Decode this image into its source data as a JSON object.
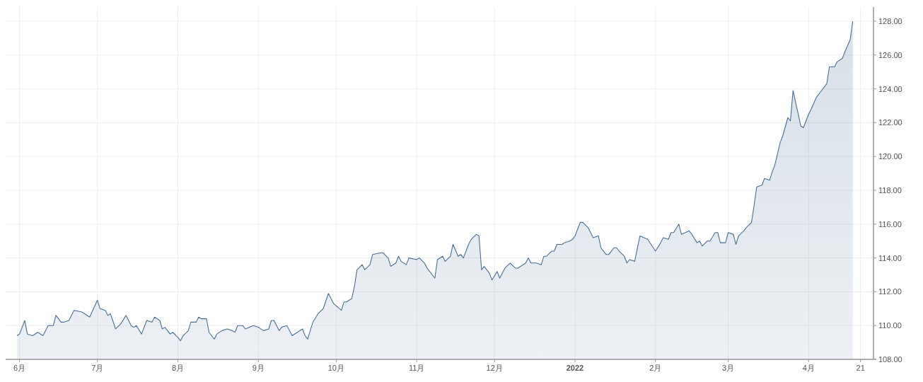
{
  "chart_data": {
    "type": "area",
    "x": [
      "2021-05-31",
      "2021-06-01",
      "2021-06-03",
      "2021-06-04",
      "2021-06-06",
      "2021-06-08",
      "2021-06-10",
      "2021-06-12",
      "2021-06-14",
      "2021-06-15",
      "2021-06-17",
      "2021-06-18",
      "2021-06-20",
      "2021-06-22",
      "2021-06-25",
      "2021-06-28",
      "2021-07-01",
      "2021-07-02",
      "2021-07-04",
      "2021-07-05",
      "2021-07-06",
      "2021-07-08",
      "2021-07-10",
      "2021-07-12",
      "2021-07-14",
      "2021-07-15",
      "2021-07-16",
      "2021-07-18",
      "2021-07-20",
      "2021-07-22",
      "2021-07-23",
      "2021-07-25",
      "2021-07-26",
      "2021-07-27",
      "2021-07-29",
      "2021-07-30",
      "2021-08-01",
      "2021-08-02",
      "2021-08-03",
      "2021-08-05",
      "2021-08-06",
      "2021-08-08",
      "2021-08-09",
      "2021-08-10",
      "2021-08-12",
      "2021-08-13",
      "2021-08-15",
      "2021-08-16",
      "2021-08-18",
      "2021-08-20",
      "2021-08-22",
      "2021-08-23",
      "2021-08-24",
      "2021-08-26",
      "2021-08-27",
      "2021-08-30",
      "2021-09-01",
      "2021-09-03",
      "2021-09-05",
      "2021-09-06",
      "2021-09-07",
      "2021-09-09",
      "2021-09-10",
      "2021-09-12",
      "2021-09-13",
      "2021-09-14",
      "2021-09-18",
      "2021-09-19",
      "2021-09-20",
      "2021-09-22",
      "2021-09-24",
      "2021-09-26",
      "2021-09-28",
      "2021-09-30",
      "2021-10-03",
      "2021-10-04",
      "2021-10-05",
      "2021-10-07",
      "2021-10-08",
      "2021-10-09",
      "2021-10-11",
      "2021-10-12",
      "2021-10-14",
      "2021-10-15",
      "2021-10-18",
      "2021-10-19",
      "2021-10-21",
      "2021-10-22",
      "2021-10-24",
      "2021-10-25",
      "2021-10-26",
      "2021-10-28",
      "2021-10-29",
      "2021-11-01",
      "2021-11-02",
      "2021-11-04",
      "2021-11-05",
      "2021-11-06",
      "2021-11-08",
      "2021-11-09",
      "2021-11-11",
      "2021-11-12",
      "2021-11-14",
      "2021-11-15",
      "2021-11-17",
      "2021-11-18",
      "2021-11-19",
      "2021-11-21",
      "2021-11-22",
      "2021-11-24",
      "2021-11-25",
      "2021-11-26",
      "2021-11-27",
      "2021-11-29",
      "2021-11-30",
      "2021-12-02",
      "2021-12-03",
      "2021-12-05",
      "2021-12-07",
      "2021-12-09",
      "2021-12-10",
      "2021-12-13",
      "2021-12-14",
      "2021-12-15",
      "2021-12-17",
      "2021-12-19",
      "2021-12-20",
      "2021-12-21",
      "2021-12-23",
      "2021-12-24",
      "2021-12-25",
      "2021-12-27",
      "2021-12-28",
      "2021-12-30",
      "2021-12-31",
      "2022-01-01",
      "2022-01-03",
      "2022-01-04",
      "2022-01-06",
      "2022-01-07",
      "2022-01-08",
      "2022-01-10",
      "2022-01-11",
      "2022-01-13",
      "2022-01-14",
      "2022-01-16",
      "2022-01-17",
      "2022-01-18",
      "2022-01-20",
      "2022-01-21",
      "2022-01-22",
      "2022-01-24",
      "2022-01-26",
      "2022-01-29",
      "2022-02-01",
      "2022-02-03",
      "2022-02-04",
      "2022-02-06",
      "2022-02-07",
      "2022-02-08",
      "2022-02-10",
      "2022-02-11",
      "2022-02-14",
      "2022-02-15",
      "2022-02-17",
      "2022-02-18",
      "2022-02-19",
      "2022-02-21",
      "2022-02-22",
      "2022-02-24",
      "2022-02-25",
      "2022-02-26",
      "2022-02-28",
      "2022-03-01",
      "2022-03-03",
      "2022-03-04",
      "2022-03-05",
      "2022-03-07",
      "2022-03-08",
      "2022-03-10",
      "2022-03-11",
      "2022-03-12",
      "2022-03-14",
      "2022-03-15",
      "2022-03-17",
      "2022-03-18",
      "2022-03-19",
      "2022-03-21",
      "2022-03-22",
      "2022-03-24",
      "2022-03-25",
      "2022-03-26",
      "2022-03-29",
      "2022-03-30",
      "2022-04-01",
      "2022-04-02",
      "2022-04-04",
      "2022-04-05",
      "2022-04-06",
      "2022-04-08",
      "2022-04-09",
      "2022-04-11",
      "2022-04-12",
      "2022-04-14",
      "2022-04-15",
      "2022-04-17",
      "2022-04-18"
    ],
    "series": [
      {
        "color": "#4a6e95",
        "values": [
          109.4,
          109.5,
          110.3,
          109.5,
          109.4,
          109.6,
          109.4,
          110.0,
          110.0,
          110.6,
          110.2,
          110.2,
          110.3,
          110.9,
          110.8,
          110.5,
          111.5,
          111.0,
          110.9,
          110.6,
          110.7,
          109.8,
          110.1,
          110.6,
          110.0,
          109.9,
          110.0,
          109.5,
          110.3,
          110.2,
          110.5,
          110.3,
          109.8,
          109.9,
          109.5,
          109.6,
          109.3,
          109.1,
          109.4,
          109.7,
          110.2,
          110.2,
          110.5,
          110.4,
          110.4,
          109.6,
          109.2,
          109.5,
          109.7,
          109.8,
          109.7,
          109.6,
          110.0,
          110.0,
          109.8,
          110.0,
          109.9,
          109.7,
          109.8,
          110.3,
          110.3,
          109.7,
          109.9,
          110.0,
          109.7,
          109.4,
          109.8,
          109.4,
          109.2,
          110.2,
          110.7,
          111.0,
          111.9,
          111.3,
          110.9,
          111.4,
          111.4,
          111.6,
          112.3,
          113.3,
          113.6,
          113.3,
          113.6,
          114.2,
          114.3,
          114.3,
          114.0,
          113.5,
          113.7,
          114.1,
          113.8,
          113.6,
          114.0,
          113.9,
          114.0,
          113.7,
          113.4,
          113.2,
          112.8,
          113.9,
          114.1,
          113.8,
          114.1,
          114.8,
          114.1,
          114.2,
          114.0,
          114.8,
          115.1,
          115.4,
          115.3,
          113.3,
          113.5,
          113.1,
          112.7,
          113.2,
          112.8,
          113.4,
          113.7,
          113.4,
          113.4,
          113.7,
          114.0,
          113.7,
          113.7,
          113.6,
          114.1,
          114.1,
          114.4,
          114.4,
          114.8,
          114.8,
          114.9,
          115.0,
          115.1,
          115.3,
          116.1,
          116.1,
          115.8,
          115.5,
          115.2,
          115.3,
          114.6,
          114.2,
          114.2,
          114.6,
          114.6,
          114.4,
          114.1,
          113.7,
          113.9,
          113.8,
          115.3,
          115.1,
          114.4,
          114.9,
          115.2,
          115.1,
          115.5,
          115.5,
          116.0,
          115.4,
          115.6,
          115.4,
          114.9,
          115.0,
          114.7,
          115.0,
          115.0,
          115.5,
          115.5,
          114.9,
          114.9,
          115.5,
          115.4,
          114.8,
          115.3,
          115.6,
          115.8,
          116.1,
          117.1,
          118.2,
          118.3,
          118.7,
          118.6,
          119.1,
          119.5,
          120.8,
          121.2,
          122.3,
          122.1,
          123.9,
          121.8,
          121.7,
          122.5,
          122.8,
          123.5,
          123.7,
          123.9,
          124.3,
          125.3,
          125.3,
          125.6,
          125.8,
          126.2,
          126.9,
          128.0
        ]
      }
    ],
    "xlim": [
      "2021-05-31",
      "2022-04-26"
    ],
    "ylim": [
      108,
      128
    ],
    "xticks": [
      {
        "value": "2021-06-01",
        "label": "6月"
      },
      {
        "value": "2021-07-01",
        "label": "7月"
      },
      {
        "value": "2021-08-01",
        "label": "8月"
      },
      {
        "value": "2021-09-01",
        "label": "9月"
      },
      {
        "value": "2021-10-01",
        "label": "10月"
      },
      {
        "value": "2021-11-01",
        "label": "11月"
      },
      {
        "value": "2021-12-01",
        "label": "12月"
      },
      {
        "value": "2022-01-01",
        "label": "2022"
      },
      {
        "value": "2022-02-01",
        "label": "2月"
      },
      {
        "value": "2022-03-01",
        "label": "3月"
      },
      {
        "value": "2022-04-01",
        "label": "4月"
      },
      {
        "value": "2022-04-21",
        "label": "21"
      }
    ],
    "yticks": [
      {
        "value": 108,
        "label": "108.00"
      },
      {
        "value": 110,
        "label": "110.00"
      },
      {
        "value": 112,
        "label": "112.00"
      },
      {
        "value": 114,
        "label": "114.00"
      },
      {
        "value": 116,
        "label": "116.00"
      },
      {
        "value": 118,
        "label": "118.00"
      },
      {
        "value": 120,
        "label": "120.00"
      },
      {
        "value": 122,
        "label": "122.00"
      },
      {
        "value": 124,
        "label": "124.00"
      },
      {
        "value": 126,
        "label": "126.00"
      },
      {
        "value": 128,
        "label": "128.00"
      }
    ],
    "grid": true
  }
}
